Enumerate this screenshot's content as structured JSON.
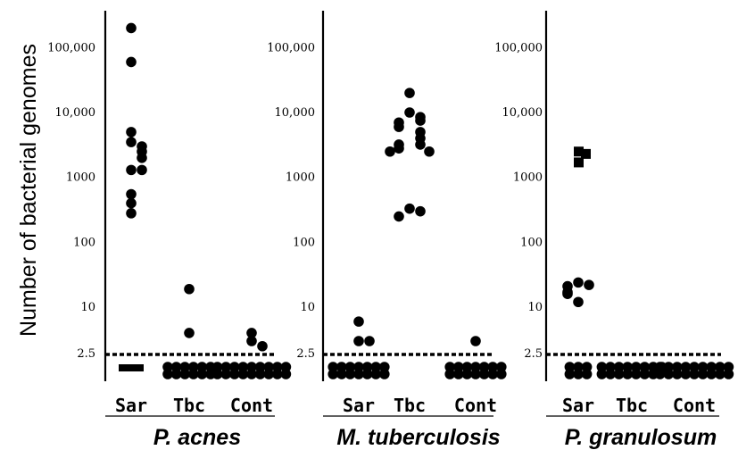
{
  "chart_data": {
    "type": "scatter",
    "ylabel": "Number of bacterial genomes",
    "yscale": "log",
    "yticks": [
      {
        "value": 2.5,
        "label": "2.5"
      },
      {
        "value": 10,
        "label": "10"
      },
      {
        "value": 100,
        "label": "100"
      },
      {
        "value": 1000,
        "label": "1000"
      },
      {
        "value": 10000,
        "label": "10,000"
      },
      {
        "value": 100000,
        "label": "100,000"
      }
    ],
    "threshold": 2.5,
    "categories": [
      "Sar",
      "Tbc",
      "Cont"
    ],
    "panels": [
      {
        "title": "P. acnes",
        "groups": [
          {
            "category": "Sar",
            "values": [
              200000,
              60000,
              5000,
              3500,
              3000,
              2500,
              2000,
              1300,
              1300,
              550,
              400,
              280
            ],
            "below_threshold_squares": 2
          },
          {
            "category": "Tbc",
            "values": [
              19,
              4
            ],
            "below_threshold_count": 12
          },
          {
            "category": "Cont",
            "values": [
              4,
              3,
              2.5
            ],
            "below_threshold_count": 18
          }
        ]
      },
      {
        "title": "M. tuberculosis",
        "groups": [
          {
            "category": "Sar",
            "values": [
              6,
              3,
              3
            ],
            "below_threshold_count": 14
          },
          {
            "category": "Tbc",
            "values": [
              20000,
              10000,
              8500,
              7500,
              7000,
              6000,
              5000,
              4000,
              3200,
              3200,
              2800,
              2500,
              2500,
              330,
              300,
              250
            ]
          },
          {
            "category": "Cont",
            "values": [
              3
            ],
            "below_threshold_count": 14
          }
        ]
      },
      {
        "title": "P. granulosum",
        "groups": [
          {
            "category": "Sar",
            "values": [
              24,
              22,
              21,
              17,
              16,
              12
            ],
            "squares": [
              2500,
              2300,
              1700
            ],
            "below_threshold_count": 6
          },
          {
            "category": "Tbc",
            "values": [],
            "below_threshold_count": 15
          },
          {
            "category": "Cont",
            "values": [],
            "below_threshold_count": 18
          }
        ]
      }
    ]
  }
}
